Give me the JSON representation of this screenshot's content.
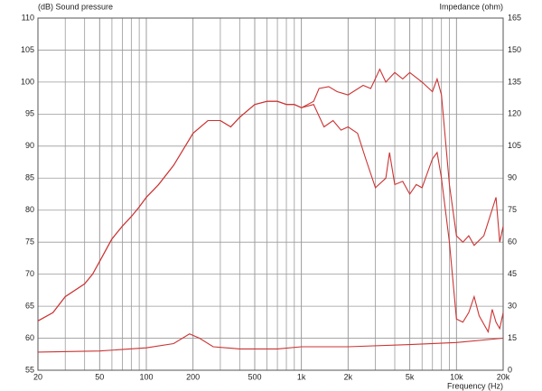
{
  "chart_data": {
    "type": "line",
    "ylabel": "(dB)  Sound pressure",
    "y2label": "Impedance  (ohm)",
    "xlabel": "Frequency  (Hz)",
    "xlog": true,
    "grid": true,
    "minor_grid": true,
    "xlim": [
      20,
      20000
    ],
    "xticks": [
      20,
      50,
      100,
      200,
      500,
      {
        "value": 1000,
        "label": "1k"
      },
      {
        "value": 2000,
        "label": "2k"
      },
      {
        "value": 5000,
        "label": "5k"
      },
      {
        "value": 10000,
        "label": "10k"
      },
      {
        "value": 20000,
        "label": "20k"
      }
    ],
    "ylim": [
      55,
      110
    ],
    "yticks": [
      55,
      60,
      65,
      70,
      75,
      80,
      85,
      90,
      95,
      100,
      105,
      110
    ],
    "y2lim": [
      0,
      165
    ],
    "y2ticks": [
      0,
      15,
      30,
      45,
      60,
      75,
      90,
      105,
      120,
      135,
      150,
      165
    ],
    "series": [
      {
        "color": "#cc3333",
        "x": [
          20,
          25,
          30,
          40,
          45,
          50,
          60,
          70,
          80,
          90,
          100,
          120,
          150,
          200,
          250,
          300,
          350,
          400,
          500,
          600,
          700,
          800,
          900,
          1000,
          1200,
          1300,
          1500,
          1700,
          2000,
          2500,
          2800,
          3200,
          3500,
          4000,
          4500,
          5000,
          6000,
          7000,
          7500,
          8000,
          9000,
          10000,
          11000,
          12000,
          13000,
          15000,
          18000,
          19000,
          20000
        ],
        "values": [
          62.7,
          64,
          66.5,
          68.5,
          70,
          72,
          75.5,
          77.5,
          79,
          80.5,
          82,
          84,
          87,
          92,
          94,
          94,
          93,
          94.5,
          96.5,
          97,
          97,
          96.5,
          96.5,
          96,
          97,
          99,
          99.3,
          98.5,
          98,
          99.5,
          99,
          102,
          100,
          101.5,
          100.5,
          101.5,
          100,
          98.5,
          100.5,
          98,
          84,
          76,
          75,
          76,
          74.5,
          76,
          82,
          75,
          77.5
        ]
      },
      {
        "color": "#cc3333",
        "x": [
          20,
          25,
          30,
          40,
          45,
          50,
          60,
          70,
          80,
          90,
          100,
          120,
          150,
          200,
          250,
          300,
          350,
          400,
          500,
          600,
          700,
          800,
          900,
          1000,
          1200,
          1400,
          1600,
          1800,
          2000,
          2300,
          2600,
          3000,
          3500,
          3700,
          4000,
          4500,
          5000,
          5500,
          6000,
          7000,
          7500,
          8000,
          9000,
          10000,
          11000,
          12000,
          13000,
          14000,
          16000,
          17000,
          18000,
          19000,
          20000
        ],
        "values": [
          62.7,
          64,
          66.5,
          68.5,
          70,
          72,
          75.5,
          77.5,
          79,
          80.5,
          82,
          84,
          87,
          92,
          94,
          94,
          93,
          94.5,
          96.5,
          97,
          97,
          96.5,
          96.5,
          96,
          96.5,
          93,
          94,
          92.5,
          93,
          92,
          88,
          83.5,
          85,
          89,
          84,
          84.5,
          82.5,
          84,
          83.5,
          88,
          89,
          85,
          75,
          63,
          62.5,
          64,
          66.5,
          63.5,
          61,
          64.5,
          62.5,
          61.5,
          64
        ]
      },
      {
        "color": "#cc3333",
        "axis": "y2",
        "x": [
          20,
          50,
          100,
          150,
          190,
          220,
          270,
          400,
          700,
          1000,
          2000,
          5000,
          10000,
          20000
        ],
        "values": [
          8.5,
          9,
          10.5,
          12.5,
          17,
          15,
          11,
          10,
          10,
          11,
          11,
          12,
          13,
          15
        ]
      }
    ]
  }
}
